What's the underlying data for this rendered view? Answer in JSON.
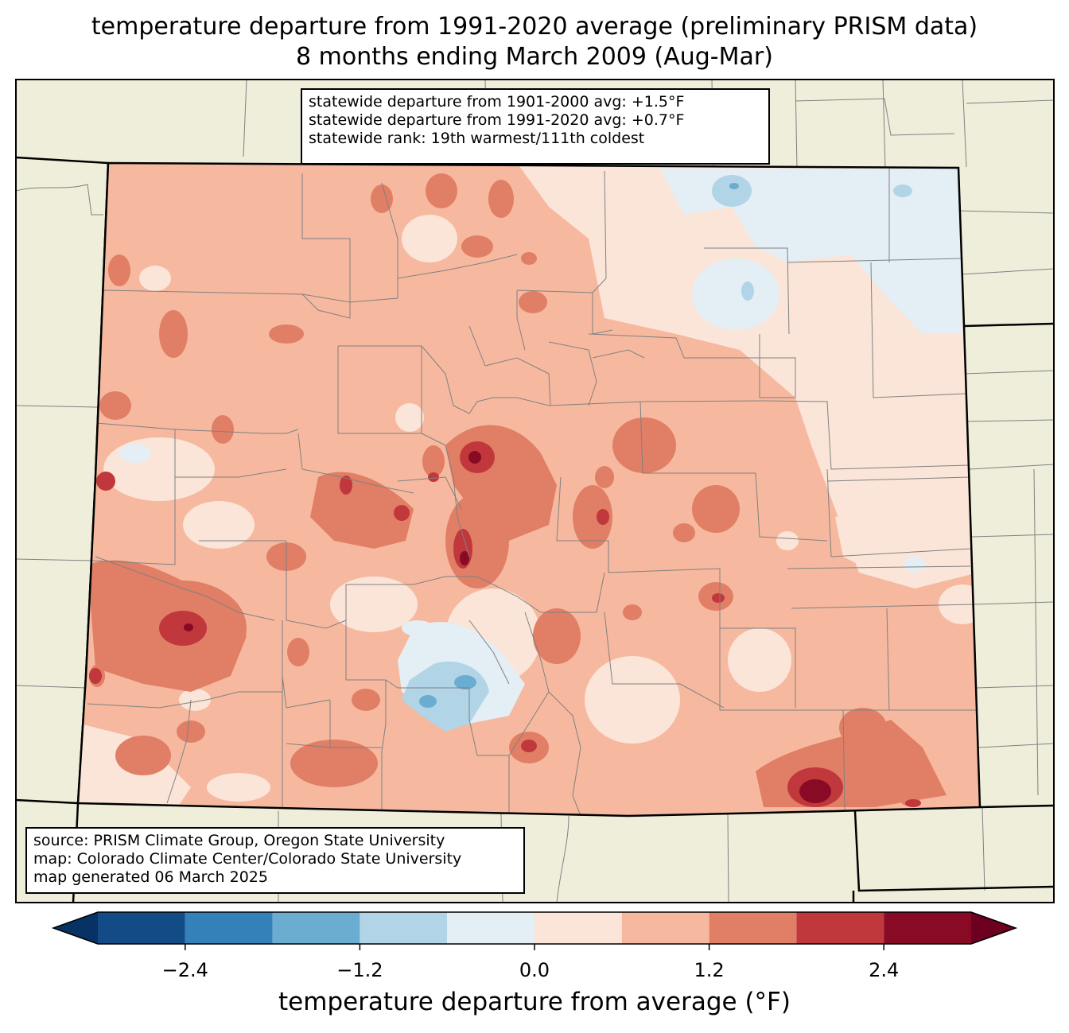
{
  "title": {
    "line1": "temperature departure from 1991-2020 average (preliminary PRISM data)",
    "line2": "8 months ending March 2009 (Aug-Mar)"
  },
  "stats": {
    "line1": "statewide departure from 1901-2000 avg: +1.5°F",
    "line2": "statewide departure from 1991-2020 avg: +0.7°F",
    "line3": "statewide rank: 19th warmest/111th coldest"
  },
  "source": {
    "line1": "source: PRISM Climate Group, Oregon State University",
    "line2": "map: Colorado Climate Center/Colorado State University",
    "line3": "map generated 06 March 2025"
  },
  "colorbar": {
    "label": "temperature departure from average (°F)",
    "ticks": [
      "−2.4",
      "−1.2",
      "0.0",
      "1.2",
      "2.4"
    ],
    "tick_values": [
      -2.4,
      -1.2,
      0.0,
      1.2,
      2.4
    ],
    "range": [
      -3.0,
      3.0
    ],
    "bins": [
      {
        "from": -3.0,
        "to": -2.4,
        "color": "#134b87"
      },
      {
        "from": -2.4,
        "to": -1.8,
        "color": "#3480b9"
      },
      {
        "from": -1.8,
        "to": -1.2,
        "color": "#6bacd1"
      },
      {
        "from": -1.2,
        "to": -0.6,
        "color": "#b1d5e7"
      },
      {
        "from": -0.6,
        "to": 0.0,
        "color": "#e4eef5"
      },
      {
        "from": 0.0,
        "to": 0.6,
        "color": "#fbe5d8"
      },
      {
        "from": 0.6,
        "to": 1.2,
        "color": "#f6b99f"
      },
      {
        "from": 1.2,
        "to": 1.8,
        "color": "#e17e66"
      },
      {
        "from": 1.8,
        "to": 2.4,
        "color": "#c0383b"
      },
      {
        "from": 2.4,
        "to": 3.0,
        "color": "#880a25"
      }
    ],
    "under_color": "#063264",
    "over_color": "#6d0021"
  },
  "colors": {
    "land": "#efeedb",
    "border": "#808080"
  }
}
